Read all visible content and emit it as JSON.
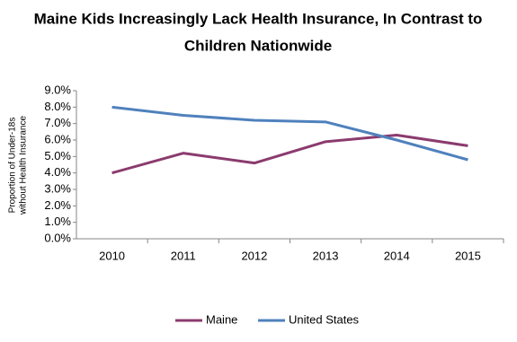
{
  "chart_data": {
    "type": "line",
    "title": [
      "Maine Kids Increasingly Lack Health Insurance, In Contrast to",
      "Children Nationwide"
    ],
    "y_label": [
      "Proportion of Under-18s",
      "without Health Insurance"
    ],
    "categories": [
      "2010",
      "2011",
      "2012",
      "2013",
      "2014",
      "2015"
    ],
    "series": [
      {
        "name": "Maine",
        "color": "#8B3B6E",
        "values": [
          4.0,
          5.2,
          4.6,
          5.9,
          6.3,
          5.65
        ]
      },
      {
        "name": "United States",
        "color": "#4F81BD",
        "values": [
          8.0,
          7.5,
          7.2,
          7.1,
          6.0,
          4.8
        ]
      }
    ],
    "ylim": [
      0,
      9
    ],
    "yticks": [
      {
        "value": 0,
        "label": "0.0%"
      },
      {
        "value": 1,
        "label": "1.0%"
      },
      {
        "value": 2,
        "label": "2.0%"
      },
      {
        "value": 3,
        "label": "3.0%"
      },
      {
        "value": 4,
        "label": "4.0%"
      },
      {
        "value": 5,
        "label": "5.0%"
      },
      {
        "value": 6,
        "label": "6.0%"
      },
      {
        "value": 7,
        "label": "7.0%"
      },
      {
        "value": 8,
        "label": "8.0%"
      },
      {
        "value": 9,
        "label": "9.0%"
      }
    ],
    "grid": false,
    "legend": "bottom"
  }
}
